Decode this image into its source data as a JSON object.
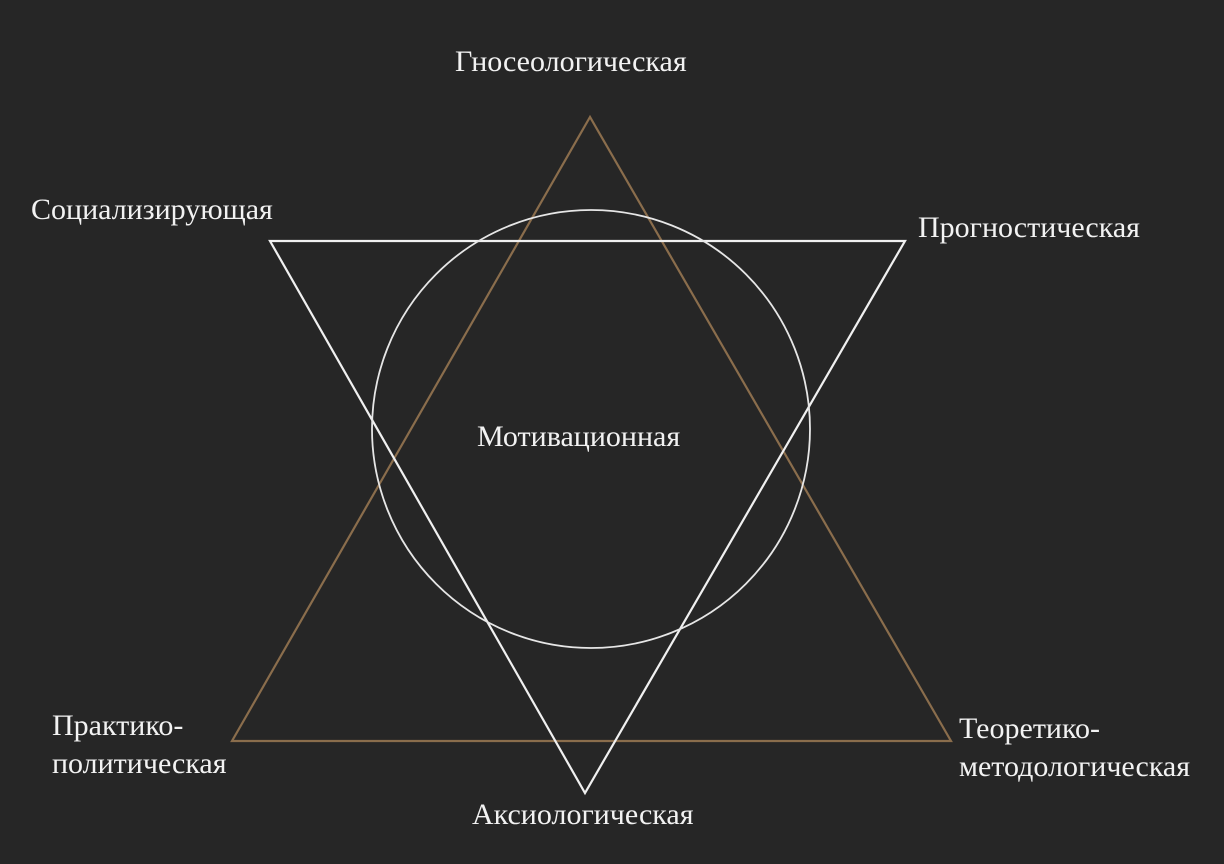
{
  "diagram": {
    "colors": {
      "background": "#262626",
      "upward_triangle": "#8a6d4c",
      "downward_triangle": "#f0f0f0",
      "circle": "#e6e6e6",
      "text": "#f2f2f2"
    },
    "labels": {
      "top": "Гносеологическая",
      "center": "Мотивационная",
      "upper_left": "Социализирующая",
      "upper_right": "Прогностическая",
      "lower_left_line1": "Практико-",
      "lower_left_line2": "политическая",
      "lower_right_line1": "Теоретико-",
      "lower_right_line2": "методологическая",
      "bottom": "Аксиологическая"
    }
  }
}
